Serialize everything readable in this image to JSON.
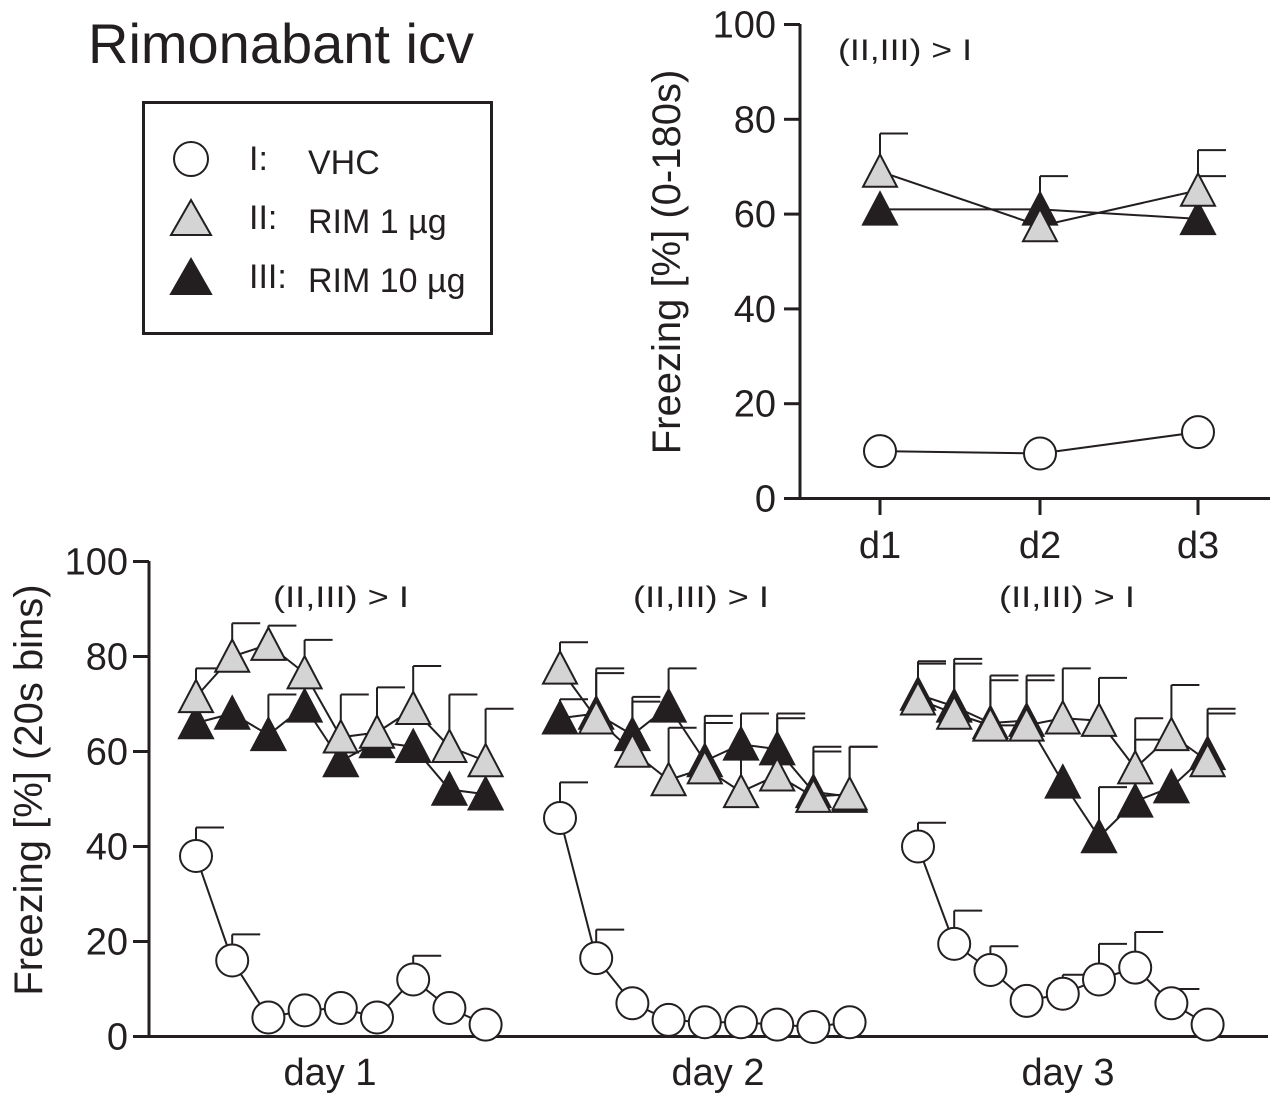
{
  "figure_title": "Rimonabant icv",
  "legend": {
    "items": [
      {
        "group": "I:",
        "label": "VHC",
        "marker": "circle",
        "fill": "#ffffff"
      },
      {
        "group": "II:",
        "label": "RIM 1 µg",
        "marker": "triangle",
        "fill": "#d4d4d4"
      },
      {
        "group": "III:",
        "label": "RIM 10 µg",
        "marker": "triangle",
        "fill": "#231f20"
      }
    ]
  },
  "chart_data": [
    {
      "type": "line",
      "id": "summary",
      "ylabel": "Freezing [%] (0-180s)",
      "ylim": [
        0,
        100
      ],
      "yticks": [
        "0",
        "20",
        "40",
        "60",
        "80",
        "100"
      ],
      "categories": [
        "d1",
        "d2",
        "d3"
      ],
      "annotation": "(II,III) > I",
      "series": [
        {
          "name": "VHC",
          "marker": "circle",
          "values": [
            10,
            9.5,
            14
          ],
          "errors": [
            null,
            null,
            null
          ]
        },
        {
          "name": "RIM 1 µg",
          "marker": "triangle-grey",
          "values": [
            69,
            57.5,
            65
          ],
          "errors": [
            77,
            null,
            73.5
          ]
        },
        {
          "name": "RIM 10 µg",
          "marker": "triangle-black",
          "values": [
            61,
            61,
            59
          ],
          "errors": [
            null,
            68,
            68
          ]
        }
      ]
    },
    {
      "type": "line",
      "id": "timecourse",
      "ylabel": "Freezing [%] (20s bins)",
      "ylim": [
        0,
        100
      ],
      "yticks": [
        "0",
        "20",
        "40",
        "60",
        "80",
        "100"
      ],
      "days": [
        {
          "label": "day 1",
          "annotation": "(II,III) > I",
          "series": [
            {
              "name": "VHC",
              "marker": "circle",
              "values": [
                38,
                16,
                4,
                5.5,
                6,
                4,
                12,
                6,
                2.5
              ],
              "errors": [
                44,
                21.5,
                null,
                null,
                null,
                null,
                17,
                null,
                null
              ]
            },
            {
              "name": "RIM 1 µg",
              "marker": "triangle-grey",
              "values": [
                71.5,
                80,
                82.5,
                76.5,
                63,
                64,
                69,
                61,
                58
              ],
              "errors": [
                77.5,
                87,
                86.5,
                83.5,
                72,
                73.5,
                78,
                72,
                69
              ]
            },
            {
              "name": "RIM 10 µg",
              "marker": "triangle-black",
              "values": [
                66,
                68,
                63.5,
                69.5,
                58,
                62,
                61,
                52,
                51
              ],
              "errors": [
                null,
                null,
                72,
                null,
                null,
                null,
                null,
                null,
                null
              ]
            }
          ]
        },
        {
          "label": "day 2",
          "annotation": "(II,III) > I",
          "series": [
            {
              "name": "VHC",
              "marker": "circle",
              "values": [
                46,
                16.5,
                7,
                3.5,
                3,
                3,
                2.5,
                2,
                3
              ],
              "errors": [
                53.5,
                22.5,
                null,
                null,
                null,
                null,
                null,
                null,
                null
              ]
            },
            {
              "name": "RIM 1 µg",
              "marker": "triangle-grey",
              "values": [
                77.5,
                67,
                60,
                54,
                56.5,
                51.5,
                55,
                50.5,
                51
              ],
              "errors": [
                83,
                77.5,
                71.5,
                65,
                67.5,
                68,
                67,
                61,
                61
              ]
            },
            {
              "name": "RIM 10 µg",
              "marker": "triangle-black",
              "values": [
                67,
                68,
                63.5,
                69.5,
                58,
                61.5,
                60.5,
                51.5,
                50.5
              ],
              "errors": [
                71,
                76.5,
                70.5,
                77.5,
                66,
                68,
                68,
                60,
                61
              ]
            }
          ]
        },
        {
          "label": "day 3",
          "annotation": "(II,III) > I",
          "series": [
            {
              "name": "VHC",
              "marker": "circle",
              "values": [
                40,
                19.5,
                14,
                7.5,
                9,
                12,
                14.5,
                7,
                2.5
              ],
              "errors": [
                45,
                26.5,
                19,
                null,
                13,
                19.5,
                22,
                10,
                null
              ]
            },
            {
              "name": "RIM 1 µg",
              "marker": "triangle-grey",
              "values": [
                71,
                68,
                65.5,
                65.5,
                67,
                66.5,
                56.5,
                63.5,
                58
              ],
              "errors": [
                78.5,
                78.5,
                75,
                75,
                77.5,
                75.5,
                67,
                74,
                68
              ]
            },
            {
              "name": "RIM 10 µg",
              "marker": "triangle-black",
              "values": [
                72,
                69.5,
                66,
                66.5,
                53.5,
                42,
                49.5,
                52.5,
                59.5
              ],
              "errors": [
                79,
                79.5,
                76,
                76,
                null,
                52.5,
                62.5,
                null,
                69
              ]
            }
          ]
        }
      ]
    }
  ]
}
